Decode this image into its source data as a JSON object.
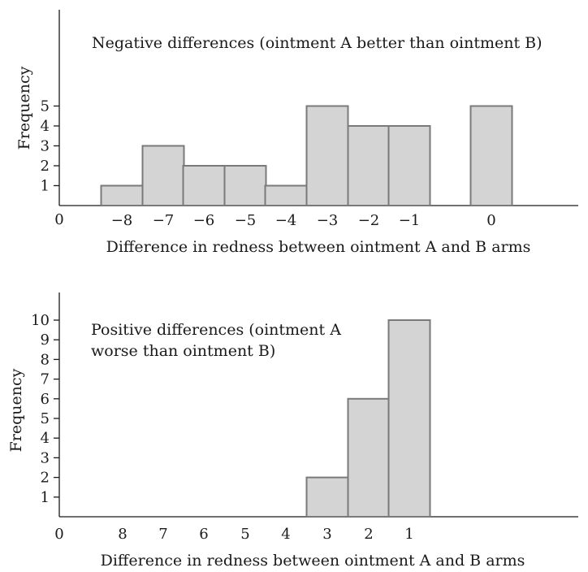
{
  "chart_data": [
    {
      "type": "bar",
      "title": "Negative differences (ointment A better than ointment B)",
      "xlabel": "Difference in redness between ointment A and B arms",
      "ylabel": "Frequency",
      "origin_label": "0",
      "categories": [
        "−8",
        "−7",
        "−6",
        "−5",
        "−4",
        "−3",
        "−2",
        "−1",
        "0"
      ],
      "values": [
        1,
        3,
        2,
        2,
        1,
        5,
        4,
        4,
        5
      ],
      "y_ticks": [
        "1",
        "2",
        "3",
        "4",
        "5"
      ],
      "ylim": [
        0,
        5
      ],
      "grid": false
    },
    {
      "type": "bar",
      "title_lines": [
        "Positive differences (ointment A",
        "worse than ointment B)"
      ],
      "xlabel": "Difference in redness between ointment A and B arms",
      "ylabel": "Frequency",
      "origin_label": "0",
      "categories": [
        "8",
        "7",
        "6",
        "5",
        "4",
        "3",
        "2",
        "1"
      ],
      "values": [
        0,
        0,
        0,
        0,
        0,
        2,
        6,
        10
      ],
      "y_ticks": [
        "1",
        "2",
        "3",
        "4",
        "5",
        "6",
        "7",
        "8",
        "9",
        "10"
      ],
      "ylim": [
        0,
        10
      ],
      "grid": false
    }
  ]
}
